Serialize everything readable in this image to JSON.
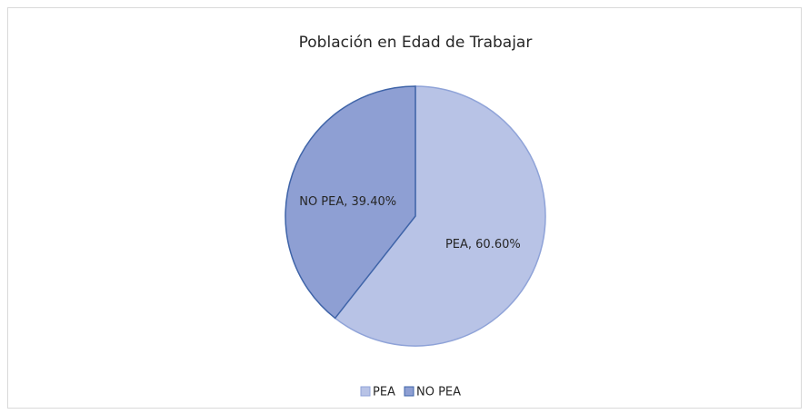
{
  "chart_data": {
    "type": "pie",
    "title": "Población en Edad de Trabajar",
    "categories": [
      "PEA",
      "NO PEA"
    ],
    "values": [
      60.6,
      39.4
    ],
    "value_labels": [
      "PEA, 60.60%",
      "NO PEA, 39.40%"
    ],
    "colors": [
      "#b8c3e6",
      "#8e9fd3"
    ],
    "edge_colors": [
      "#8fa3d8",
      "#3f64a8"
    ],
    "legend": "bottom"
  }
}
